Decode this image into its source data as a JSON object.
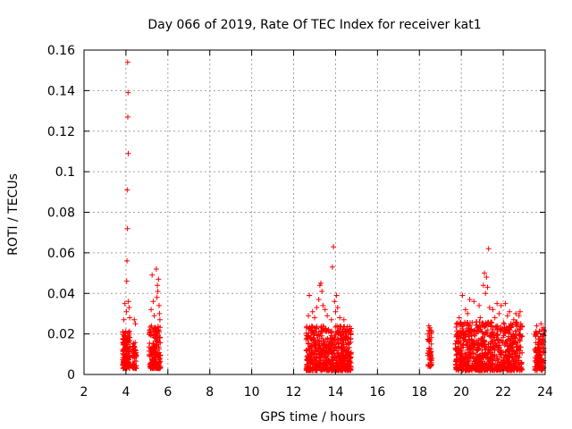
{
  "chart_data": {
    "type": "scatter",
    "title": "Day 066 of 2019, Rate Of TEC Index for receiver kat1",
    "xlabel": "GPS time / hours",
    "ylabel": "ROTI / TECUs",
    "xlim": [
      2,
      24
    ],
    "ylim": [
      0,
      0.16
    ],
    "grid": true,
    "marker": "+",
    "marker_color": "#ff0000",
    "x_ticks": [
      2,
      4,
      6,
      8,
      10,
      12,
      14,
      16,
      18,
      20,
      22,
      24
    ],
    "x_tick_labels": [
      "2",
      "4",
      "6",
      "8",
      "10",
      "12",
      "14",
      "16",
      "18",
      "20",
      "22",
      "24"
    ],
    "y_ticks": [
      0,
      0.02,
      0.04,
      0.06,
      0.08,
      0.1,
      0.12,
      0.14,
      0.16
    ],
    "y_tick_labels": [
      "0",
      "0.02",
      "0.04",
      "0.06",
      "0.08",
      "0.1",
      "0.12",
      "0.14",
      "0.16"
    ],
    "series": [
      {
        "name": "kat1",
        "clusters": [
          {
            "x_range": [
              3.85,
              4.2
            ],
            "base": [
              0.003,
              0.022
            ],
            "n": 170
          },
          {
            "x_range": [
              4.3,
              4.5
            ],
            "base": [
              0.003,
              0.016
            ],
            "n": 60
          },
          {
            "x_range": [
              5.1,
              5.65
            ],
            "base": [
              0.003,
              0.024
            ],
            "n": 190
          },
          {
            "x_range": [
              12.6,
              14.75
            ],
            "base": [
              0.002,
              0.024
            ],
            "n": 650
          },
          {
            "x_range": [
              18.4,
              18.6
            ],
            "base": [
              0.004,
              0.022
            ],
            "n": 50
          },
          {
            "x_range": [
              19.7,
              22.9
            ],
            "base": [
              0.002,
              0.026
            ],
            "n": 900
          },
          {
            "x_range": [
              23.5,
              23.95
            ],
            "base": [
              0.002,
              0.022
            ],
            "n": 130
          }
        ],
        "points": [
          {
            "x": 4.08,
            "y": 0.154
          },
          {
            "x": 4.1,
            "y": 0.139
          },
          {
            "x": 4.09,
            "y": 0.127
          },
          {
            "x": 4.11,
            "y": 0.109
          },
          {
            "x": 4.06,
            "y": 0.091
          },
          {
            "x": 4.07,
            "y": 0.072
          },
          {
            "x": 4.05,
            "y": 0.056
          },
          {
            "x": 4.04,
            "y": 0.046
          },
          {
            "x": 4.12,
            "y": 0.036
          },
          {
            "x": 3.95,
            "y": 0.035
          },
          {
            "x": 4.15,
            "y": 0.033
          },
          {
            "x": 4.02,
            "y": 0.031
          },
          {
            "x": 4.18,
            "y": 0.028
          },
          {
            "x": 3.9,
            "y": 0.027
          },
          {
            "x": 4.4,
            "y": 0.027
          },
          {
            "x": 4.45,
            "y": 0.025
          },
          {
            "x": 5.45,
            "y": 0.052
          },
          {
            "x": 5.25,
            "y": 0.049
          },
          {
            "x": 5.55,
            "y": 0.047
          },
          {
            "x": 5.5,
            "y": 0.044
          },
          {
            "x": 5.52,
            "y": 0.041
          },
          {
            "x": 5.48,
            "y": 0.038
          },
          {
            "x": 5.3,
            "y": 0.036
          },
          {
            "x": 5.58,
            "y": 0.034
          },
          {
            "x": 5.2,
            "y": 0.032
          },
          {
            "x": 5.6,
            "y": 0.03
          },
          {
            "x": 5.35,
            "y": 0.029
          },
          {
            "x": 5.62,
            "y": 0.027
          },
          {
            "x": 13.9,
            "y": 0.063
          },
          {
            "x": 13.85,
            "y": 0.053
          },
          {
            "x": 13.3,
            "y": 0.045
          },
          {
            "x": 13.25,
            "y": 0.044
          },
          {
            "x": 13.35,
            "y": 0.041
          },
          {
            "x": 12.75,
            "y": 0.039
          },
          {
            "x": 13.2,
            "y": 0.037
          },
          {
            "x": 14.05,
            "y": 0.039
          },
          {
            "x": 13.95,
            "y": 0.036
          },
          {
            "x": 13.4,
            "y": 0.034
          },
          {
            "x": 13.1,
            "y": 0.033
          },
          {
            "x": 14.1,
            "y": 0.033
          },
          {
            "x": 13.5,
            "y": 0.032
          },
          {
            "x": 12.9,
            "y": 0.031
          },
          {
            "x": 14.0,
            "y": 0.031
          },
          {
            "x": 12.7,
            "y": 0.029
          },
          {
            "x": 13.6,
            "y": 0.029
          },
          {
            "x": 14.2,
            "y": 0.028
          },
          {
            "x": 13.0,
            "y": 0.028
          },
          {
            "x": 14.4,
            "y": 0.027
          },
          {
            "x": 13.8,
            "y": 0.027
          },
          {
            "x": 18.5,
            "y": 0.023
          },
          {
            "x": 18.45,
            "y": 0.024
          },
          {
            "x": 21.3,
            "y": 0.062
          },
          {
            "x": 21.1,
            "y": 0.05
          },
          {
            "x": 21.2,
            "y": 0.048
          },
          {
            "x": 21.05,
            "y": 0.044
          },
          {
            "x": 21.25,
            "y": 0.043
          },
          {
            "x": 21.15,
            "y": 0.04
          },
          {
            "x": 20.05,
            "y": 0.039
          },
          {
            "x": 20.4,
            "y": 0.037
          },
          {
            "x": 20.6,
            "y": 0.036
          },
          {
            "x": 22.1,
            "y": 0.035
          },
          {
            "x": 21.7,
            "y": 0.035
          },
          {
            "x": 21.9,
            "y": 0.034
          },
          {
            "x": 20.85,
            "y": 0.034
          },
          {
            "x": 21.35,
            "y": 0.033
          },
          {
            "x": 20.2,
            "y": 0.032
          },
          {
            "x": 21.5,
            "y": 0.032
          },
          {
            "x": 22.3,
            "y": 0.031
          },
          {
            "x": 22.8,
            "y": 0.031
          },
          {
            "x": 20.3,
            "y": 0.03
          },
          {
            "x": 21.8,
            "y": 0.03
          },
          {
            "x": 22.6,
            "y": 0.03
          },
          {
            "x": 22.2,
            "y": 0.029
          },
          {
            "x": 20.9,
            "y": 0.028
          },
          {
            "x": 19.9,
            "y": 0.028
          },
          {
            "x": 22.75,
            "y": 0.029
          },
          {
            "x": 21.6,
            "y": 0.028
          },
          {
            "x": 22.5,
            "y": 0.027
          },
          {
            "x": 23.8,
            "y": 0.025
          },
          {
            "x": 23.6,
            "y": 0.024
          },
          {
            "x": 23.9,
            "y": 0.023
          }
        ]
      }
    ]
  }
}
